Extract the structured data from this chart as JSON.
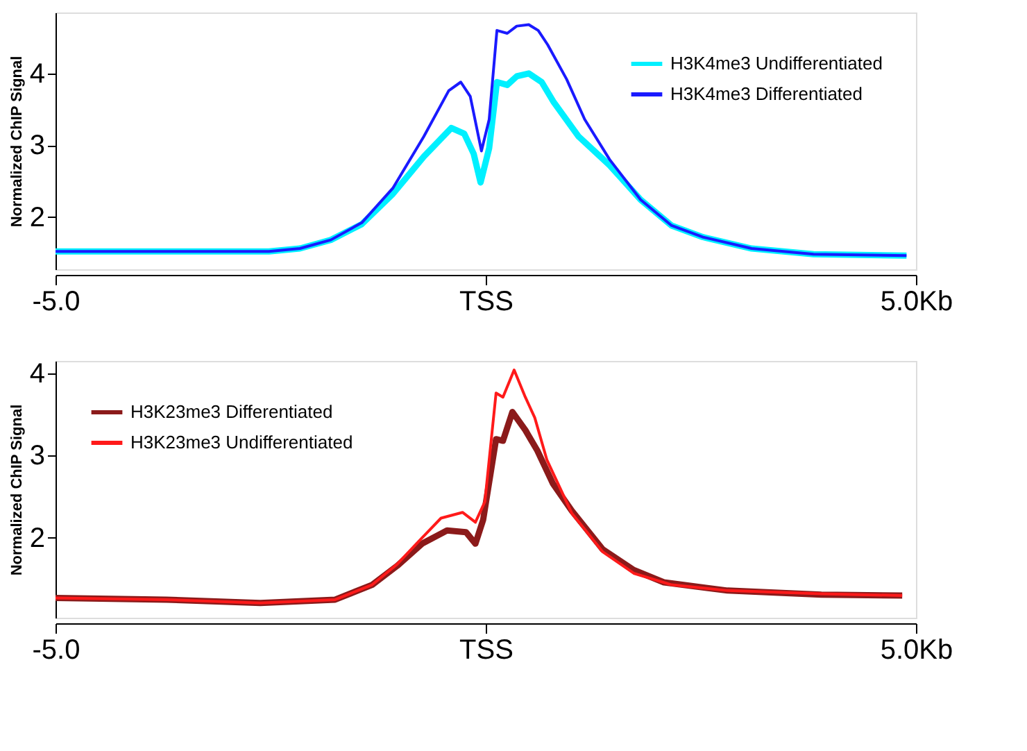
{
  "chart_data": [
    {
      "type": "line",
      "ylabel": "Normalized ChIP Signal",
      "xlim": [
        -5,
        5
      ],
      "ylim": [
        1.27,
        4.85
      ],
      "xticks": [
        {
          "value": -5,
          "label": "-5.0"
        },
        {
          "value": 0,
          "label": "TSS"
        },
        {
          "value": 5,
          "label": "5.0Kb"
        }
      ],
      "yticks": [
        2,
        3,
        4
      ],
      "grid": false,
      "legend": "top right",
      "marker": "none",
      "line_style": "solid",
      "series": [
        {
          "name": "H3K4me3 Undifferentiated",
          "color": "#00f0ff",
          "x": [
            -5,
            -2.52,
            -2.16,
            -1.8,
            -1.44,
            -1.08,
            -0.72,
            -0.4,
            -0.25,
            -0.14,
            -0.06,
            0.04,
            0.13,
            0.25,
            0.36,
            0.5,
            0.65,
            0.79,
            1.08,
            1.44,
            1.8,
            2.16,
            2.52,
            3.09,
            3.81,
            4.89
          ],
          "values": [
            1.52,
            1.52,
            1.56,
            1.68,
            1.9,
            2.32,
            2.84,
            3.24,
            3.16,
            2.88,
            2.48,
            2.96,
            3.88,
            3.84,
            3.96,
            4.0,
            3.88,
            3.6,
            3.12,
            2.72,
            2.24,
            1.88,
            1.72,
            1.56,
            1.48,
            1.46
          ]
        },
        {
          "name": "H3K4me3 Differentiated",
          "color": "#1a1aff",
          "x": [
            -5,
            -2.52,
            -2.16,
            -1.8,
            -1.44,
            -1.08,
            -0.72,
            -0.43,
            -0.29,
            -0.18,
            -0.05,
            0.04,
            0.13,
            0.25,
            0.36,
            0.5,
            0.61,
            0.72,
            0.94,
            1.15,
            1.44,
            1.8,
            2.16,
            2.52,
            3.09,
            3.81,
            4.89
          ],
          "values": [
            1.52,
            1.52,
            1.56,
            1.68,
            1.92,
            2.4,
            3.12,
            3.76,
            3.88,
            3.68,
            2.92,
            3.36,
            4.6,
            4.56,
            4.66,
            4.68,
            4.6,
            4.4,
            3.92,
            3.36,
            2.8,
            2.24,
            1.88,
            1.72,
            1.56,
            1.48,
            1.46
          ]
        }
      ]
    },
    {
      "type": "line",
      "ylabel": "Normalized ChIP Signal",
      "xlim": [
        -5,
        5
      ],
      "ylim": [
        1.03,
        4.15
      ],
      "xticks": [
        {
          "value": -5,
          "label": "-5.0"
        },
        {
          "value": 0,
          "label": "TSS"
        },
        {
          "value": 5,
          "label": "5.0Kb"
        }
      ],
      "yticks": [
        2,
        3,
        4
      ],
      "grid": false,
      "legend": "top left",
      "marker": "none",
      "line_style": "solid",
      "series": [
        {
          "name": "H3K23me3 Differentiated",
          "color": "#8b1a1a",
          "x": [
            -5,
            -3.71,
            -2.62,
            -1.75,
            -1.32,
            -1.03,
            -0.74,
            -0.45,
            -0.23,
            -0.12,
            -0.03,
            0.12,
            0.2,
            0.31,
            0.46,
            0.6,
            0.78,
            1.0,
            1.36,
            1.72,
            2.07,
            2.81,
            3.9,
            4.84
          ],
          "values": [
            1.27,
            1.25,
            1.21,
            1.25,
            1.43,
            1.66,
            1.93,
            2.09,
            2.07,
            1.93,
            2.22,
            3.2,
            3.18,
            3.53,
            3.31,
            3.06,
            2.66,
            2.33,
            1.86,
            1.61,
            1.46,
            1.36,
            1.31,
            1.3
          ]
        },
        {
          "name": "H3K23me3 Undifferentiated",
          "color": "#ff1a1a",
          "x": [
            -5,
            -3.71,
            -2.62,
            -1.75,
            -1.32,
            -1.03,
            -0.74,
            -0.52,
            -0.27,
            -0.12,
            -0.01,
            0.12,
            0.2,
            0.33,
            0.46,
            0.57,
            0.71,
            1.0,
            1.36,
            1.72,
            2.16,
            2.81,
            3.9,
            4.84
          ],
          "values": [
            1.27,
            1.25,
            1.21,
            1.25,
            1.43,
            1.68,
            2.0,
            2.24,
            2.31,
            2.19,
            2.44,
            3.76,
            3.71,
            4.04,
            3.71,
            3.46,
            2.95,
            2.3,
            1.83,
            1.57,
            1.43,
            1.36,
            1.32,
            1.3
          ]
        }
      ]
    }
  ]
}
